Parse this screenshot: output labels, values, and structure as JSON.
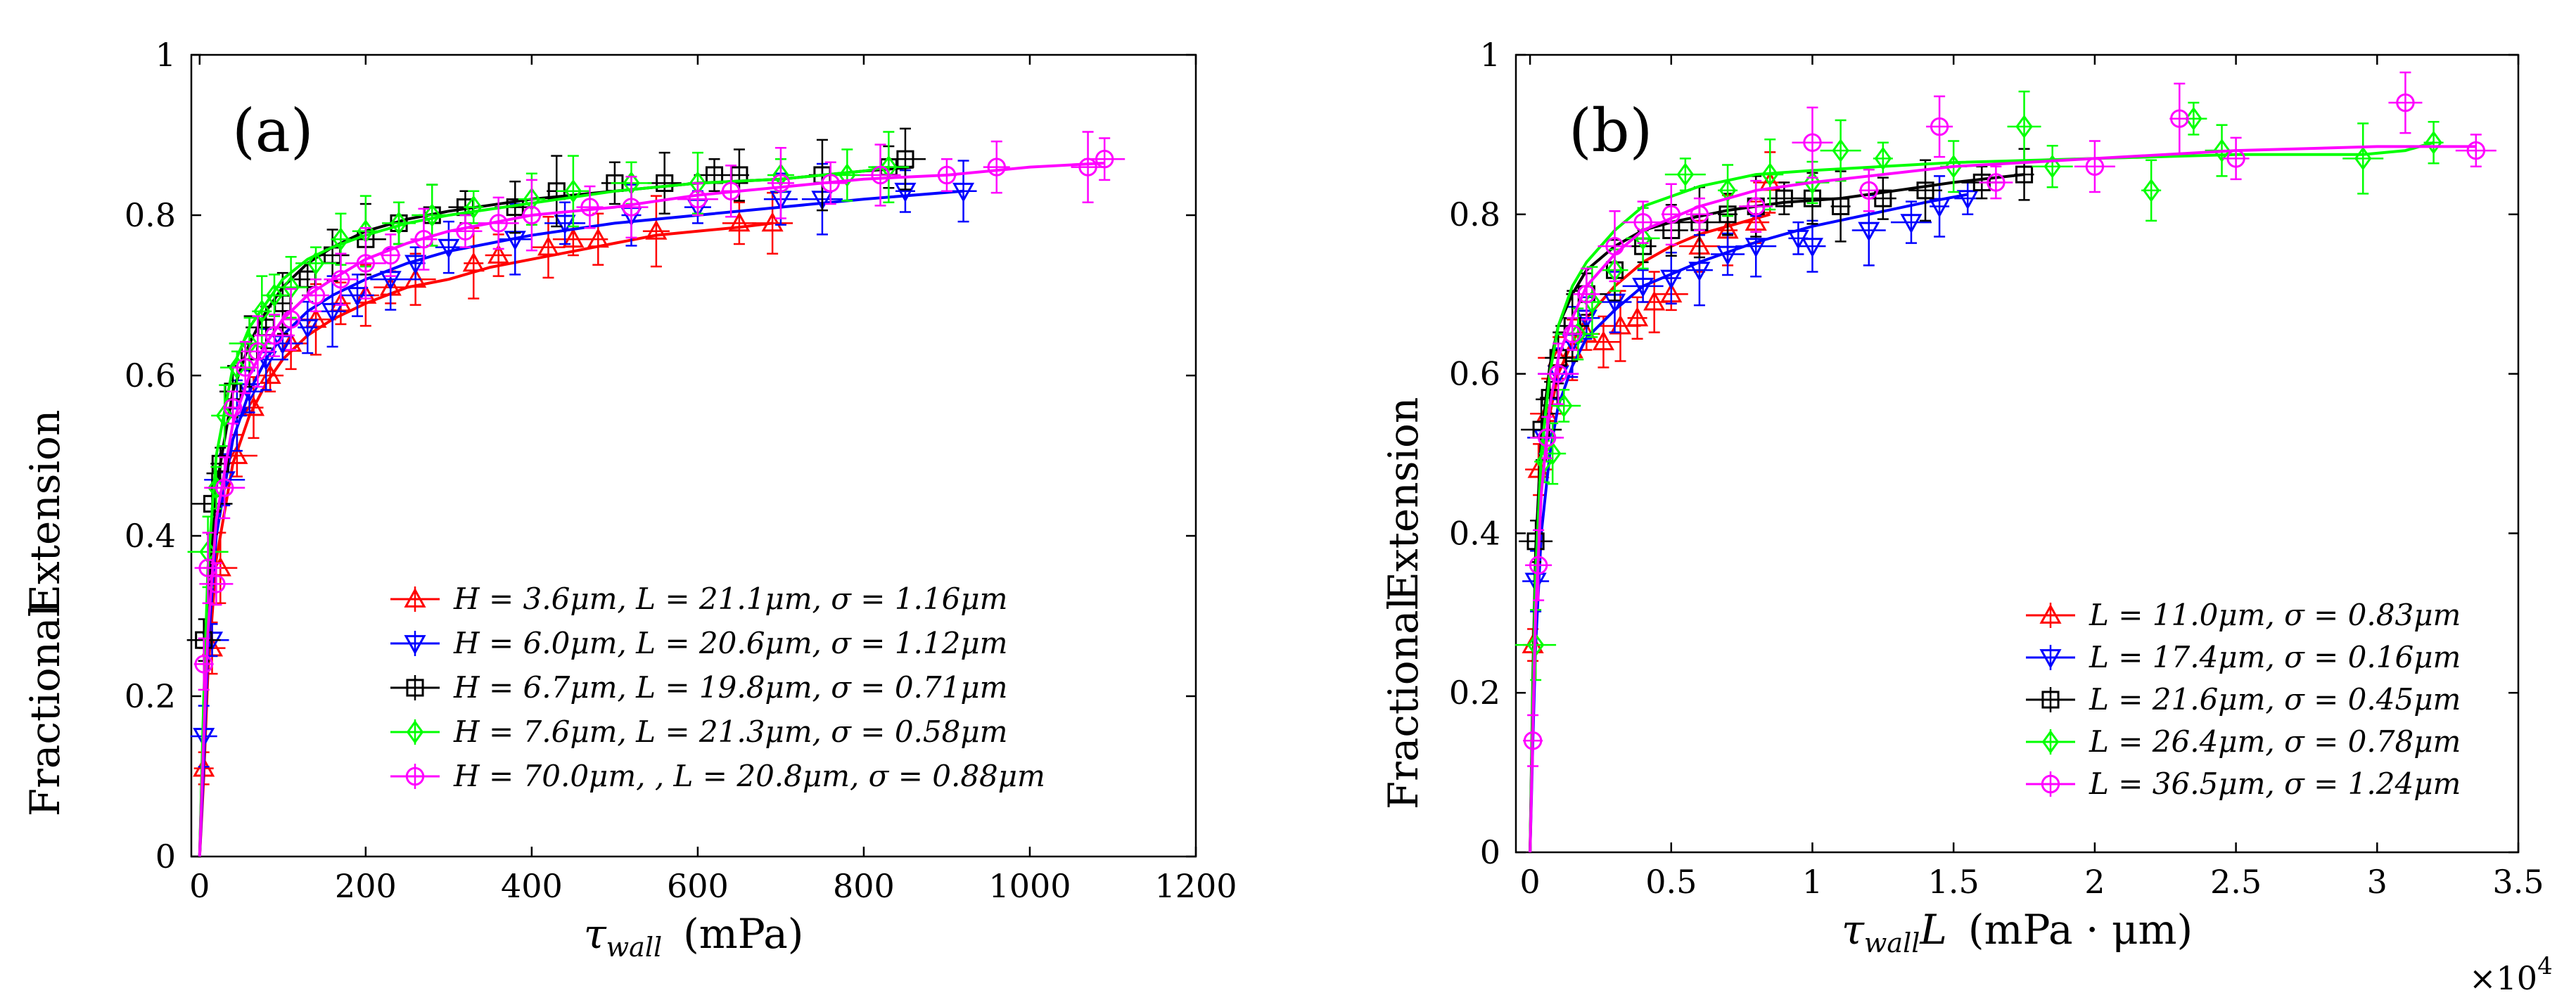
{
  "chart_data": [
    {
      "type": "scatter",
      "panel_label": "(a)",
      "xlabel": "τwall (mPa)",
      "xlabel_main": "τ",
      "xlabel_sub": "wall",
      "xlabel_unit": "(mPa)",
      "ylabel": "Fractional Extension",
      "ylabel_words": [
        "Fractional",
        "Extension"
      ],
      "xlim": [
        -10,
        1200
      ],
      "ylim": [
        0,
        1
      ],
      "xticks": [
        0,
        200,
        400,
        600,
        800,
        1000,
        1200
      ],
      "xtick_labels": [
        "0",
        "200",
        "400",
        "600",
        "800",
        "1000",
        "1200"
      ],
      "yticks": [
        0,
        0.2,
        0.4,
        0.6,
        0.8,
        1
      ],
      "ytick_labels": [
        "0",
        "0.2",
        "0.4",
        "0.6",
        "0.8",
        "1"
      ],
      "grid": false,
      "legend_position": "bottom-right",
      "series": [
        {
          "name": "H = 3.6μm, L = 21.1μm, σ = 1.16μm",
          "color": "#ff0000",
          "marker": "triangle-up",
          "x": [
            5,
            15,
            25,
            45,
            65,
            85,
            110,
            140,
            170,
            200,
            230,
            260,
            330,
            360,
            420,
            450,
            480,
            550,
            650,
            690
          ],
          "y": [
            0.11,
            0.26,
            0.36,
            0.5,
            0.56,
            0.6,
            0.64,
            0.67,
            0.69,
            0.7,
            0.71,
            0.72,
            0.74,
            0.75,
            0.76,
            0.77,
            0.77,
            0.78,
            0.79,
            0.79
          ],
          "fit_x": [
            0,
            5,
            10,
            20,
            40,
            60,
            80,
            100,
            130,
            160,
            200,
            250,
            300,
            350,
            400,
            450,
            500,
            550,
            600,
            650,
            690
          ],
          "fit_y": [
            0,
            0.1,
            0.23,
            0.37,
            0.49,
            0.55,
            0.59,
            0.62,
            0.65,
            0.67,
            0.69,
            0.71,
            0.72,
            0.735,
            0.745,
            0.755,
            0.765,
            0.775,
            0.78,
            0.785,
            0.79
          ]
        },
        {
          "name": "H = 6.0μm, L = 20.6μm, σ = 1.12μm",
          "color": "#0000ff",
          "marker": "triangle-down",
          "x": [
            5,
            15,
            30,
            45,
            60,
            80,
            100,
            130,
            160,
            190,
            230,
            260,
            300,
            380,
            440,
            520,
            600,
            700,
            750,
            850,
            920
          ],
          "y": [
            0.15,
            0.27,
            0.47,
            0.55,
            0.58,
            0.62,
            0.64,
            0.66,
            0.68,
            0.7,
            0.72,
            0.74,
            0.76,
            0.77,
            0.79,
            0.8,
            0.81,
            0.82,
            0.82,
            0.83,
            0.83
          ],
          "fit_x": [
            0,
            5,
            10,
            20,
            40,
            60,
            80,
            100,
            130,
            160,
            200,
            250,
            300,
            400,
            500,
            600,
            700,
            800,
            920
          ],
          "fit_y": [
            0,
            0.12,
            0.26,
            0.4,
            0.52,
            0.58,
            0.62,
            0.65,
            0.68,
            0.7,
            0.72,
            0.74,
            0.755,
            0.775,
            0.79,
            0.8,
            0.81,
            0.82,
            0.83
          ]
        },
        {
          "name": "H = 6.7μm, L = 19.8μm, σ = 0.71μm",
          "color": "#000000",
          "marker": "square",
          "x": [
            5,
            15,
            25,
            40,
            60,
            80,
            100,
            130,
            160,
            200,
            240,
            280,
            320,
            380,
            430,
            500,
            560,
            620,
            650,
            750,
            830,
            850
          ],
          "y": [
            0.27,
            0.44,
            0.49,
            0.58,
            0.63,
            0.66,
            0.69,
            0.72,
            0.75,
            0.77,
            0.79,
            0.8,
            0.81,
            0.81,
            0.83,
            0.84,
            0.84,
            0.85,
            0.85,
            0.85,
            0.86,
            0.87
          ],
          "fit_x": [
            0,
            5,
            10,
            20,
            40,
            60,
            80,
            100,
            130,
            160,
            200,
            250,
            300,
            400,
            500,
            600,
            700,
            800,
            860
          ],
          "fit_y": [
            0,
            0.18,
            0.32,
            0.46,
            0.58,
            0.64,
            0.68,
            0.71,
            0.74,
            0.76,
            0.78,
            0.795,
            0.805,
            0.82,
            0.83,
            0.84,
            0.845,
            0.855,
            0.86
          ]
        },
        {
          "name": "H = 7.6μm, L = 21.3μm, σ = 0.58μm",
          "color": "#00ff00",
          "marker": "diamond",
          "x": [
            10,
            20,
            30,
            45,
            60,
            75,
            90,
            110,
            140,
            170,
            200,
            240,
            280,
            330,
            400,
            450,
            520,
            600,
            700,
            780,
            830
          ],
          "y": [
            0.38,
            0.46,
            0.55,
            0.61,
            0.64,
            0.68,
            0.7,
            0.71,
            0.74,
            0.77,
            0.78,
            0.79,
            0.8,
            0.81,
            0.82,
            0.83,
            0.84,
            0.84,
            0.85,
            0.85,
            0.86
          ],
          "fit_x": [
            0,
            5,
            10,
            20,
            40,
            60,
            80,
            100,
            130,
            160,
            200,
            250,
            300,
            400,
            500,
            600,
            700,
            800,
            830
          ],
          "fit_y": [
            0,
            0.2,
            0.36,
            0.5,
            0.61,
            0.66,
            0.69,
            0.72,
            0.745,
            0.76,
            0.775,
            0.79,
            0.8,
            0.815,
            0.83,
            0.84,
            0.845,
            0.855,
            0.86
          ]
        },
        {
          "name": "H = 70.0μm, , L = 20.8μm, σ = 0.88μm",
          "color": "#ff00ff",
          "marker": "circle",
          "x": [
            5,
            10,
            20,
            30,
            40,
            55,
            70,
            90,
            110,
            140,
            170,
            200,
            230,
            270,
            320,
            360,
            400,
            470,
            520,
            600,
            640,
            700,
            760,
            820,
            900,
            960,
            1070,
            1090
          ],
          "y": [
            0.24,
            0.36,
            0.34,
            0.46,
            0.56,
            0.61,
            0.63,
            0.65,
            0.67,
            0.7,
            0.72,
            0.74,
            0.75,
            0.77,
            0.78,
            0.79,
            0.8,
            0.81,
            0.81,
            0.82,
            0.83,
            0.84,
            0.84,
            0.85,
            0.85,
            0.86,
            0.86,
            0.87
          ],
          "fit_x": [
            0,
            5,
            10,
            20,
            40,
            60,
            80,
            100,
            130,
            160,
            200,
            250,
            300,
            400,
            500,
            600,
            700,
            800,
            900,
            1000,
            1090
          ],
          "fit_y": [
            0,
            0.15,
            0.28,
            0.42,
            0.54,
            0.6,
            0.64,
            0.67,
            0.7,
            0.72,
            0.745,
            0.765,
            0.78,
            0.8,
            0.81,
            0.825,
            0.835,
            0.845,
            0.85,
            0.86,
            0.865
          ]
        }
      ]
    },
    {
      "type": "scatter",
      "panel_label": "(b)",
      "xlabel": "τwallL (mPa · μm)",
      "xlabel_main": "τ",
      "xlabel_sub": "wall",
      "xlabel_after": "L",
      "xlabel_unit": "(mPa · μm)",
      "ylabel": "Fractional Extension",
      "ylabel_words": [
        "Fractional",
        "Extension"
      ],
      "x_multiplier": "×10",
      "x_multiplier_exp": "4",
      "xlim": [
        -0.05,
        3.5
      ],
      "ylim": [
        0,
        1
      ],
      "xticks": [
        0,
        0.5,
        1,
        1.5,
        2,
        2.5,
        3,
        3.5
      ],
      "xtick_labels": [
        "0",
        "0.5",
        "1",
        "1.5",
        "2",
        "2.5",
        "3",
        "3.5"
      ],
      "yticks": [
        0,
        0.2,
        0.4,
        0.6,
        0.8,
        1
      ],
      "ytick_labels": [
        "0",
        "0.2",
        "0.4",
        "0.6",
        "0.8",
        "1"
      ],
      "grid": false,
      "legend_position": "bottom-right",
      "series": [
        {
          "name": "L = 11.0μm, σ = 0.83μm",
          "color": "#ff0000",
          "marker": "triangle-up",
          "x": [
            0.01,
            0.03,
            0.06,
            0.1,
            0.15,
            0.2,
            0.26,
            0.32,
            0.38,
            0.44,
            0.5,
            0.6,
            0.7,
            0.8,
            0.85
          ],
          "y": [
            0.26,
            0.48,
            0.55,
            0.62,
            0.63,
            0.65,
            0.64,
            0.66,
            0.67,
            0.69,
            0.7,
            0.76,
            0.78,
            0.79,
            0.84
          ],
          "fit_x": [
            0,
            0.01,
            0.02,
            0.04,
            0.07,
            0.1,
            0.15,
            0.2,
            0.3,
            0.4,
            0.5,
            0.6,
            0.7,
            0.85
          ],
          "fit_y": [
            0,
            0.18,
            0.32,
            0.46,
            0.55,
            0.6,
            0.64,
            0.67,
            0.71,
            0.74,
            0.76,
            0.775,
            0.785,
            0.8
          ]
        },
        {
          "name": "L = 17.4μm, σ = 0.16μm",
          "color": "#0000ff",
          "marker": "triangle-down",
          "x": [
            0.02,
            0.05,
            0.1,
            0.15,
            0.2,
            0.3,
            0.4,
            0.5,
            0.6,
            0.7,
            0.8,
            0.95,
            1.0,
            1.2,
            1.35,
            1.45,
            1.55
          ],
          "y": [
            0.34,
            0.52,
            0.6,
            0.64,
            0.67,
            0.69,
            0.71,
            0.72,
            0.73,
            0.75,
            0.76,
            0.77,
            0.76,
            0.78,
            0.79,
            0.81,
            0.82
          ],
          "fit_x": [
            0,
            0.01,
            0.02,
            0.04,
            0.07,
            0.1,
            0.15,
            0.2,
            0.3,
            0.4,
            0.6,
            0.8,
            1.0,
            1.2,
            1.4,
            1.55
          ],
          "fit_y": [
            0,
            0.14,
            0.26,
            0.4,
            0.5,
            0.56,
            0.61,
            0.645,
            0.68,
            0.71,
            0.74,
            0.765,
            0.785,
            0.8,
            0.815,
            0.825
          ]
        },
        {
          "name": "L = 21.6μm, σ = 0.45μm",
          "color": "#000000",
          "marker": "square",
          "x": [
            0.02,
            0.04,
            0.07,
            0.1,
            0.15,
            0.2,
            0.3,
            0.4,
            0.5,
            0.6,
            0.7,
            0.8,
            0.9,
            1.0,
            1.1,
            1.25,
            1.4,
            1.6,
            1.75
          ],
          "y": [
            0.39,
            0.53,
            0.57,
            0.62,
            0.66,
            0.7,
            0.73,
            0.76,
            0.78,
            0.79,
            0.8,
            0.81,
            0.82,
            0.82,
            0.81,
            0.82,
            0.83,
            0.84,
            0.85
          ],
          "fit_x": [
            0,
            0.01,
            0.02,
            0.04,
            0.07,
            0.1,
            0.15,
            0.2,
            0.3,
            0.4,
            0.5,
            0.7,
            0.9,
            1.1,
            1.3,
            1.5,
            1.75
          ],
          "fit_y": [
            0,
            0.22,
            0.38,
            0.52,
            0.61,
            0.66,
            0.7,
            0.73,
            0.76,
            0.78,
            0.79,
            0.805,
            0.815,
            0.82,
            0.83,
            0.84,
            0.85
          ]
        },
        {
          "name": "L = 26.4μm, σ = 0.78μm",
          "color": "#00ff00",
          "marker": "diamond",
          "x": [
            0.02,
            0.05,
            0.08,
            0.12,
            0.17,
            0.22,
            0.3,
            0.4,
            0.55,
            0.7,
            0.85,
            1.0,
            1.1,
            1.25,
            1.5,
            1.75,
            1.85,
            2.2,
            2.35,
            2.45,
            2.95,
            3.2
          ],
          "y": [
            0.26,
            0.49,
            0.5,
            0.56,
            0.65,
            0.69,
            0.73,
            0.77,
            0.85,
            0.83,
            0.85,
            0.84,
            0.88,
            0.87,
            0.86,
            0.91,
            0.86,
            0.83,
            0.92,
            0.88,
            0.87,
            0.89
          ],
          "fit_x": [
            0,
            0.01,
            0.02,
            0.04,
            0.07,
            0.1,
            0.15,
            0.2,
            0.3,
            0.4,
            0.6,
            0.8,
            1.0,
            1.5,
            2.0,
            2.5,
            2.95,
            3.1,
            3.2
          ],
          "fit_y": [
            0,
            0.2,
            0.35,
            0.5,
            0.6,
            0.66,
            0.71,
            0.74,
            0.78,
            0.81,
            0.835,
            0.85,
            0.855,
            0.865,
            0.87,
            0.875,
            0.875,
            0.88,
            0.89
          ]
        },
        {
          "name": "L = 36.5μm, σ = 1.24μm",
          "color": "#ff00ff",
          "marker": "circle",
          "x": [
            0.01,
            0.03,
            0.06,
            0.1,
            0.15,
            0.2,
            0.3,
            0.4,
            0.5,
            0.6,
            0.8,
            1.0,
            1.2,
            1.45,
            1.65,
            2.0,
            2.3,
            2.5,
            3.1,
            3.35
          ],
          "y": [
            0.14,
            0.36,
            0.52,
            0.6,
            0.65,
            0.7,
            0.76,
            0.79,
            0.8,
            0.8,
            0.81,
            0.89,
            0.83,
            0.91,
            0.84,
            0.86,
            0.92,
            0.87,
            0.94,
            0.88
          ],
          "fit_x": [
            0,
            0.01,
            0.02,
            0.04,
            0.07,
            0.1,
            0.15,
            0.2,
            0.3,
            0.4,
            0.6,
            0.8,
            1.0,
            1.5,
            2.0,
            2.5,
            3.0,
            3.35
          ],
          "fit_y": [
            0,
            0.16,
            0.3,
            0.45,
            0.56,
            0.62,
            0.67,
            0.71,
            0.75,
            0.78,
            0.81,
            0.83,
            0.84,
            0.86,
            0.87,
            0.88,
            0.885,
            0.885
          ]
        }
      ]
    }
  ]
}
